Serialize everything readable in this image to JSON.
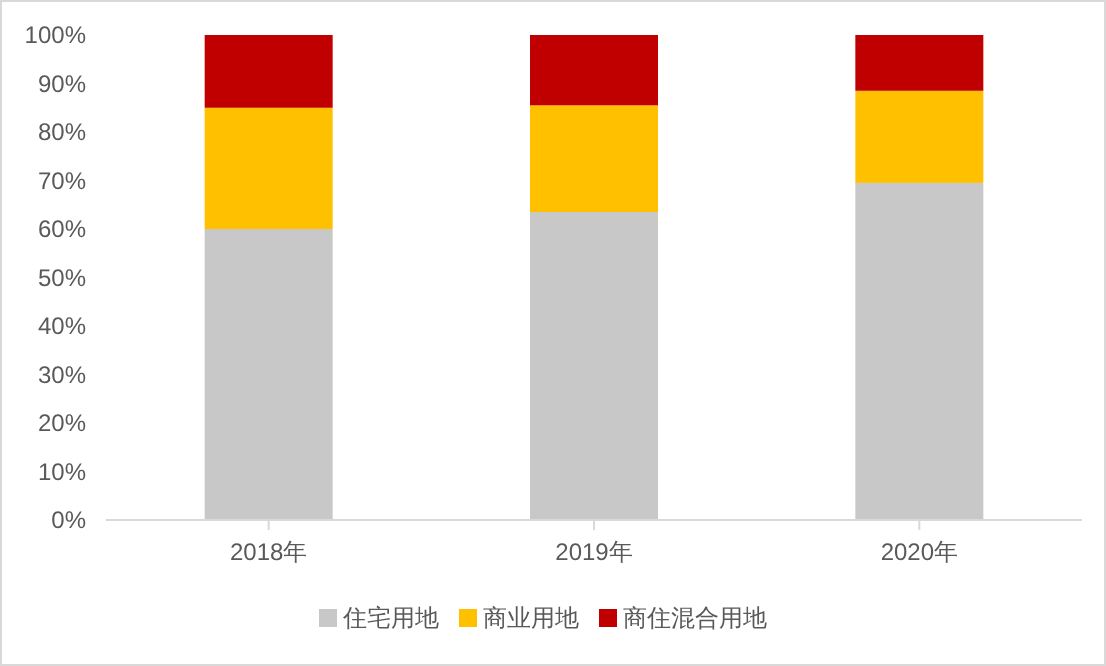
{
  "chart_data": {
    "type": "bar",
    "stacked": true,
    "categories": [
      "2018年",
      "2019年",
      "2020年"
    ],
    "series": [
      {
        "name": "住宅用地",
        "color": "#c8c8c8",
        "values": [
          60,
          63.5,
          69.5
        ]
      },
      {
        "name": "商业用地",
        "color": "#ffc000",
        "values": [
          25,
          22,
          19
        ]
      },
      {
        "name": "商住混合用地",
        "color": "#c00000",
        "values": [
          15,
          14.5,
          11.5
        ]
      }
    ],
    "ylim": [
      0,
      100
    ],
    "yticks": [
      {
        "value": 0,
        "label": "0%"
      },
      {
        "value": 10,
        "label": "10%"
      },
      {
        "value": 20,
        "label": "20%"
      },
      {
        "value": 30,
        "label": "30%"
      },
      {
        "value": 40,
        "label": "40%"
      },
      {
        "value": 50,
        "label": "50%"
      },
      {
        "value": 60,
        "label": "60%"
      },
      {
        "value": 70,
        "label": "70%"
      },
      {
        "value": 80,
        "label": "80%"
      },
      {
        "value": 90,
        "label": "90%"
      },
      {
        "value": 100,
        "label": "100%"
      }
    ],
    "grid": false,
    "legend": "bottom"
  }
}
